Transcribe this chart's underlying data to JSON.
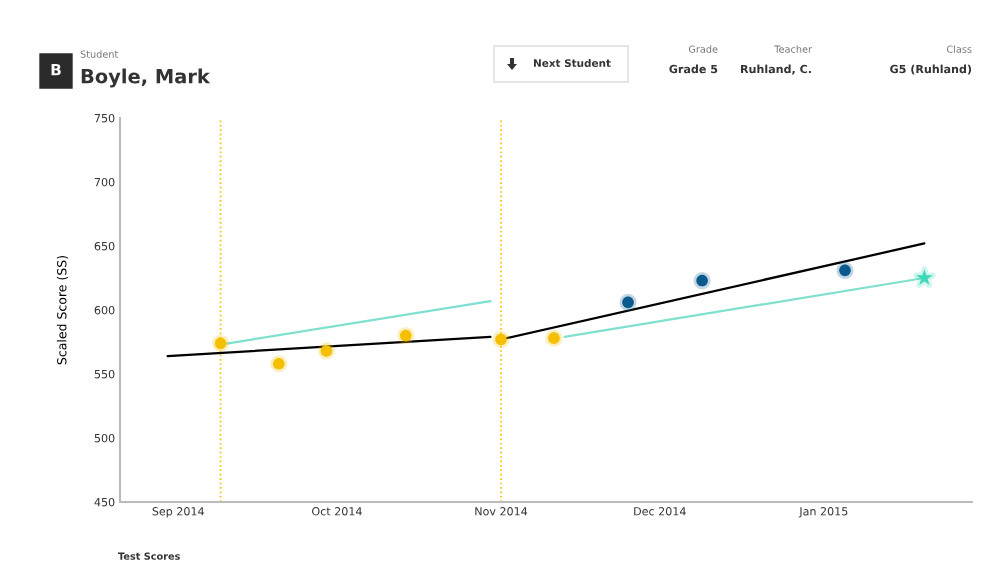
{
  "chart_data": {
    "type": "scatter",
    "title": "Boyle, Mark",
    "subtitle": "Student",
    "ylabel": "Scaled Score (SS)",
    "annotations": [
      "B",
      "Next Student",
      "Grade",
      "Grade 5",
      "Teacher",
      "Ruhland, C.",
      "Class",
      "G5 (Ruhland)",
      "Test Scores"
    ],
    "series": [
      {
        "type": "line",
        "color": "#000000",
        "x": [
          "2014-08-30",
          "2014-10-30"
        ],
        "values": [
          564,
          579
        ]
      },
      {
        "type": "line",
        "color": "#000000",
        "x": [
          "2014-11-01",
          "2015-01-20"
        ],
        "values": [
          577,
          652
        ]
      },
      {
        "type": "line",
        "color": "#7fe0d0",
        "x": [
          "2014-09-09",
          "2014-10-30"
        ],
        "values": [
          573,
          607
        ]
      },
      {
        "type": "line",
        "color": "#7fe0d0",
        "x": [
          "2014-11-13",
          "2015-01-20"
        ],
        "values": [
          579,
          625
        ]
      },
      {
        "color": "#f5c000",
        "marker": "circle",
        "x": [
          "2014-09-09",
          "2014-09-20",
          "2014-09-29",
          "2014-10-14",
          "2014-11-01",
          "2014-11-11"
        ],
        "values": [
          574,
          558,
          568,
          580,
          577,
          578
        ]
      },
      {
        "color": "#0b5a8e",
        "marker": "circle",
        "x": [
          "2014-11-25",
          "2014-12-09",
          "2015-01-05"
        ],
        "values": [
          606,
          623,
          631
        ]
      },
      {
        "color": "#3fd8b8",
        "marker": "star",
        "x": [
          "2015-01-20"
        ],
        "values": [
          625
        ]
      }
    ],
    "ref_lines": [
      {
        "axis": "x",
        "value": "2014-09-09",
        "color": "#f5c000",
        "line_style": "dotted"
      },
      {
        "axis": "x",
        "value": "2014-11-01",
        "color": "#f5c000",
        "line_style": "dotted"
      }
    ],
    "xlim": [
      "2014-08-21",
      "2015-01-29"
    ],
    "xticks": [
      {
        "value": "2014-09",
        "label": "Sep 2014"
      },
      {
        "value": "2014-10",
        "label": "Oct 2014"
      },
      {
        "value": "2014-11",
        "label": "Nov 2014"
      },
      {
        "value": "2014-12",
        "label": "Dec 2014"
      },
      {
        "value": "2015-01",
        "label": "Jan 2015"
      }
    ],
    "ylim": [
      450,
      750
    ],
    "yticks": [
      450,
      500,
      550,
      600,
      650,
      700,
      750
    ],
    "grid": false,
    "legend": false
  }
}
